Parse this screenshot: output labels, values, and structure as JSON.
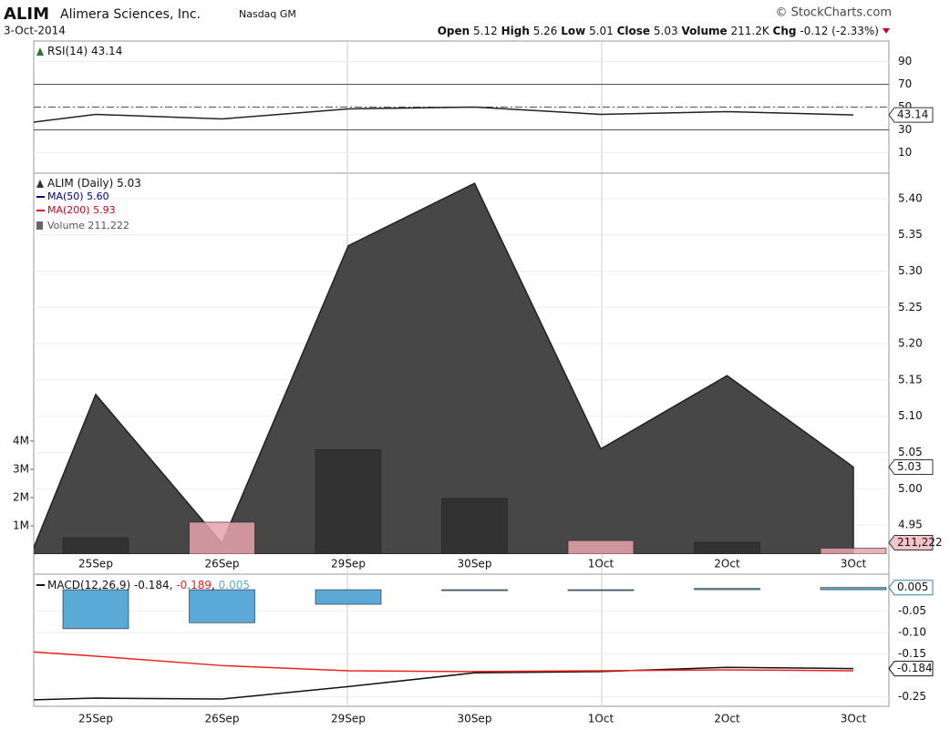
{
  "header": {
    "symbol": "ALIM",
    "company": "Alimera Sciences, Inc.",
    "exchange": "Nasdaq GM",
    "date": "3-Oct-2014",
    "source": "© StockCharts.com",
    "open": {
      "label": "Open",
      "value": 5.12
    },
    "high": {
      "label": "High",
      "value": 5.26
    },
    "low": {
      "label": "Low",
      "value": 5.01
    },
    "close": {
      "label": "Close",
      "value": 5.03
    },
    "volume": {
      "label": "Volume",
      "value": "211.2K"
    },
    "change": {
      "label": "Chg",
      "value": "-0.12 (-2.33%)"
    }
  },
  "chart_data": [
    {
      "type": "line",
      "ylim": [
        -8,
        100
      ],
      "yticks": [
        10,
        30,
        50,
        70,
        90
      ],
      "grid": true,
      "reference_lines": [
        {
          "value": 70,
          "style": "solid"
        },
        {
          "value": 50,
          "style": "dashdot"
        },
        {
          "value": 30,
          "style": "solid"
        }
      ],
      "series": [
        {
          "name": "RSI(14)",
          "type": "line",
          "color": "#222222",
          "values": [
            29.8,
            43.6,
            39.6,
            48.4,
            50,
            43.6,
            46,
            43.14
          ]
        }
      ]
    },
    {
      "type": "area",
      "categories": [
        null,
        "25Sep",
        "26Sep",
        "29Sep",
        "30Sep",
        "1Oct",
        "2Oct",
        "3Oct"
      ],
      "ylim": [
        4.91,
        5.435
      ],
      "yticks": [
        4.95,
        {
          "value": 5,
          "label": "5.00"
        },
        5.05,
        {
          "value": 5.1,
          "label": "5.10"
        },
        5.15,
        {
          "value": 5.2,
          "label": "5.20"
        },
        5.25,
        {
          "value": 5.3,
          "label": "5.30"
        },
        5.35,
        {
          "value": 5.4,
          "label": "5.40"
        }
      ],
      "y2lim": [
        0,
        13480000
      ],
      "y2ticks": [
        {
          "value": 1000000,
          "label": "1M"
        },
        {
          "value": 2000000,
          "label": "2M"
        },
        {
          "value": 3000000,
          "label": "3M"
        },
        {
          "value": 4000000,
          "label": "4M"
        }
      ],
      "grid": true,
      "series": [
        {
          "name": "ALIM (Daily)",
          "type": "area",
          "color": "#474747",
          "values": [
            4.7,
            5.13,
            4.925,
            5.335,
            5.421,
            5.055,
            5.156,
            5.03
          ]
        },
        {
          "name": "Volume",
          "type": "bar",
          "axis": "y2",
          "values": [
            null,
            580000,
            1130000,
            3700000,
            1970000,
            480000,
            420000,
            211222
          ],
          "colors": [
            "#2f2f2f",
            "#2f2f2f",
            "#e6a4ab",
            "#2f2f2f",
            "#2f2f2f",
            "#e6a4ab",
            "#2f2f2f",
            "#e6a4ab"
          ],
          "value_labels": [
            null,
            null,
            null,
            null,
            null,
            null,
            null,
            "211,222"
          ]
        }
      ],
      "moving_averages": [
        {
          "name": "MA(50)",
          "color": "#00007f",
          "value": 5.6,
          "value_label": "5.60"
        },
        {
          "name": "MA(200)",
          "color": "#d0021b",
          "value": 5.93
        }
      ]
    },
    {
      "type": "line",
      "categories": [
        null,
        "25Sep",
        "26Sep",
        "29Sep",
        "30Sep",
        "1Oct",
        "2Oct",
        "3Oct"
      ],
      "ylim": [
        -0.272,
        0.032
      ],
      "yticks": [
        -0.25,
        -0.15,
        {
          "value": -0.1,
          "label": "-0.10"
        },
        -0.05
      ],
      "grid": true,
      "legend_label": "MACD(12,26,9)",
      "legend_separator": ", ",
      "series": [
        {
          "type": "line",
          "color": "#111111",
          "values": [
            -0.261,
            -0.253,
            -0.255,
            -0.226,
            -0.194,
            -0.191,
            -0.181,
            -0.184
          ]
        },
        {
          "type": "line",
          "color": "#e8231d",
          "values": [
            -0.135,
            -0.155,
            -0.177,
            -0.189,
            -0.191,
            -0.189,
            -0.187,
            -0.189
          ]
        },
        {
          "type": "bar",
          "color": "#5aa9d6",
          "values": [
            null,
            -0.091,
            -0.077,
            -0.034,
            -0.002,
            -0.001,
            0.003,
            0.005
          ]
        }
      ]
    }
  ]
}
